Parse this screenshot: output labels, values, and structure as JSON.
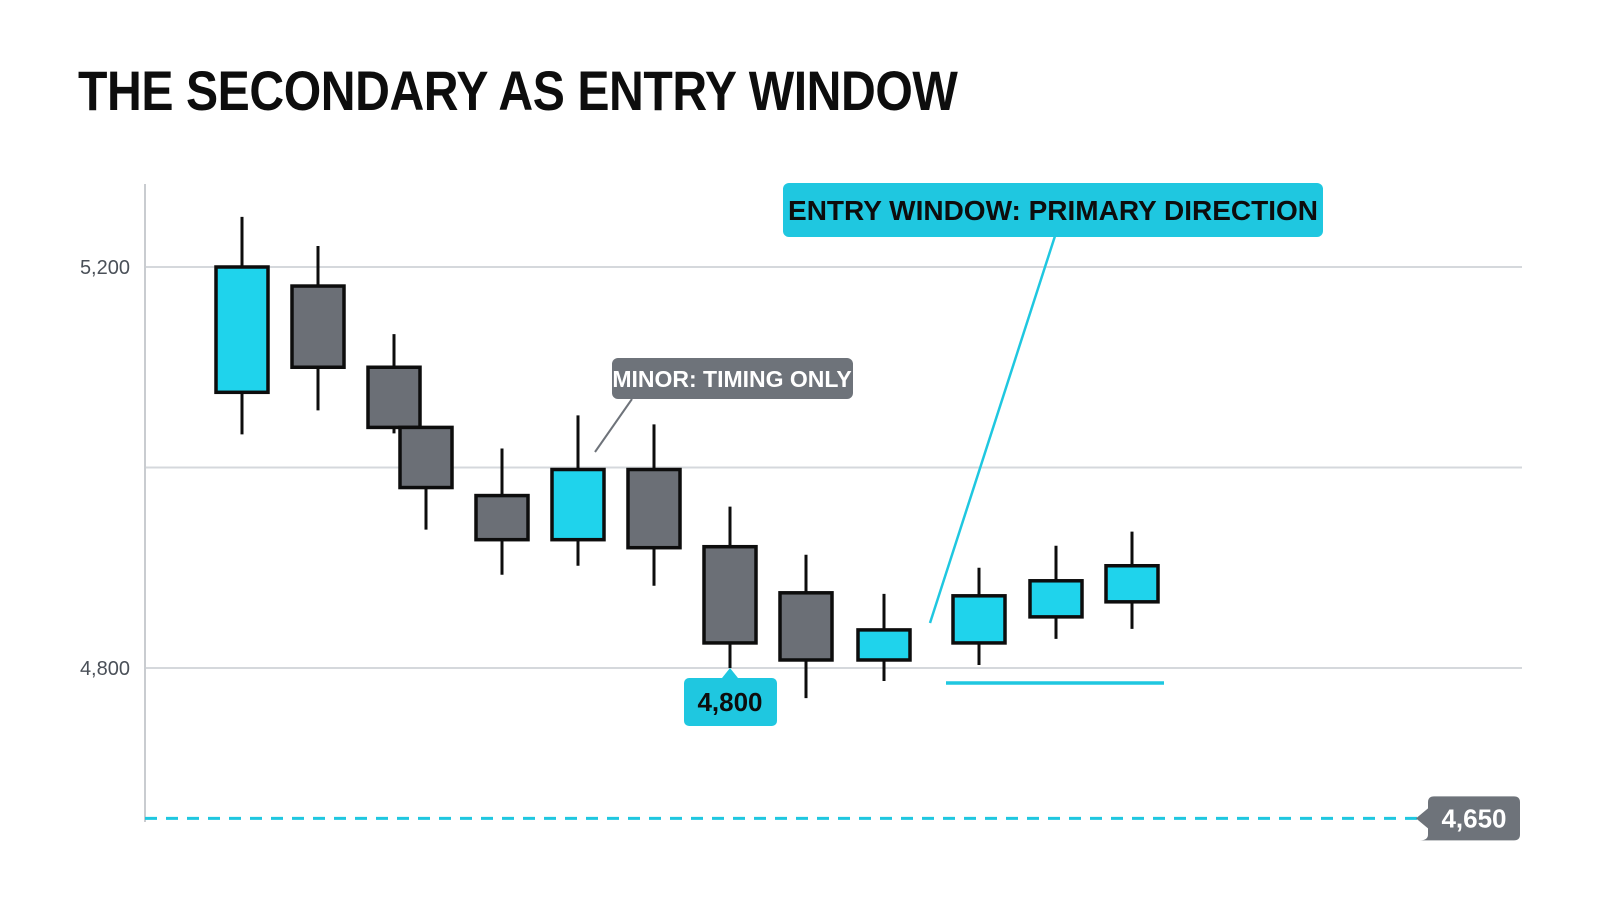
{
  "chart_data": {
    "type": "candlestick",
    "title": "THE SECONDARY AS ENTRY WINDOW",
    "y_ticks": [
      "5,200",
      "4,800"
    ],
    "y_tick_values": [
      5200,
      4800
    ],
    "ylim": [
      4640,
      5290
    ],
    "grid": true,
    "colors": {
      "up": "#1fd3ec",
      "down": "#6b6f76",
      "outline": "#0d0d0d",
      "accent": "#1fc7e0",
      "dark_tag": "#6e737a",
      "grid": "#d5d8dc"
    },
    "candles": [
      {
        "open": 5075,
        "high": 5250,
        "low": 5033,
        "close": 5200,
        "direction": "up"
      },
      {
        "open": 5181,
        "high": 5221,
        "low": 5057,
        "close": 5100,
        "direction": "down"
      },
      {
        "open": 5100,
        "high": 5133,
        "low": 5034,
        "close": 5040,
        "direction": "down"
      },
      {
        "open": 5040,
        "high": 5040,
        "low": 4938,
        "close": 4980,
        "direction": "down"
      },
      {
        "open": 4972,
        "high": 5019,
        "low": 4893,
        "close": 4928,
        "direction": "down"
      },
      {
        "open": 4928,
        "high": 5052,
        "low": 4902,
        "close": 4998,
        "direction": "up"
      },
      {
        "open": 4998,
        "high": 5043,
        "low": 4882,
        "close": 4920,
        "direction": "down"
      },
      {
        "open": 4921,
        "high": 4961,
        "low": 4800,
        "close": 4825,
        "direction": "down"
      },
      {
        "open": 4875,
        "high": 4913,
        "low": 4770,
        "close": 4808,
        "direction": "down"
      },
      {
        "open": 4808,
        "high": 4874,
        "low": 4787,
        "close": 4838,
        "direction": "up"
      },
      {
        "open": 4825,
        "high": 4900,
        "low": 4803,
        "close": 4872,
        "direction": "up"
      },
      {
        "open": 4851,
        "high": 4922,
        "low": 4829,
        "close": 4887,
        "direction": "up"
      },
      {
        "open": 4866,
        "high": 4936,
        "low": 4839,
        "close": 4902,
        "direction": "up"
      }
    ],
    "annotations": {
      "entry_window": "ENTRY WINDOW: PRIMARY DIRECTION",
      "minor": "MINOR: TIMING ONLY",
      "low_tag": "4,800",
      "dashed_level": 4650,
      "dashed_level_label": "4,650",
      "support_level": 4785
    }
  }
}
